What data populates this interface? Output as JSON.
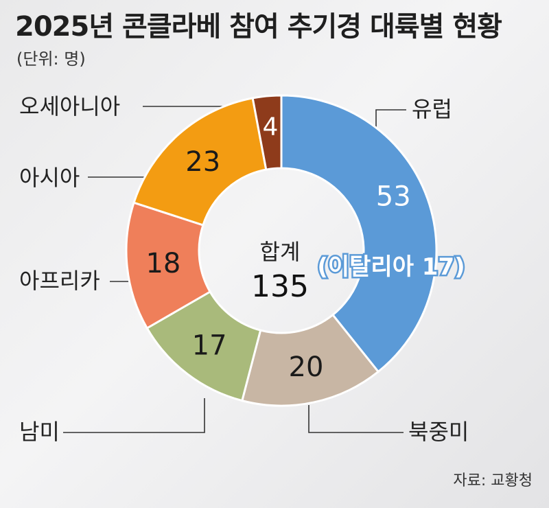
{
  "title": "2025년 콘클라베 참여 추기경 대륙별 현황",
  "unit": "(단위: 명)",
  "source": "자료: 교황청",
  "chart_data": {
    "type": "pie",
    "title": "2025년 콘클라베 참여 추기경 대륙별 현황",
    "unit": "(단위: 명)",
    "categories": [
      "유럽",
      "북중미",
      "남미",
      "아프리카",
      "아시아",
      "오세아니아"
    ],
    "values": [
      53,
      20,
      17,
      18,
      23,
      4
    ],
    "colors": [
      "#5b9ad7",
      "#c8b6a4",
      "#a9ba7b",
      "#ef7f5a",
      "#f39c12",
      "#8e3b1b"
    ],
    "center_label": "합계",
    "total": 135,
    "annotation": "(이탈리아 17)",
    "annotation_color": "#5b9ad7",
    "legend": "callout-lines"
  }
}
